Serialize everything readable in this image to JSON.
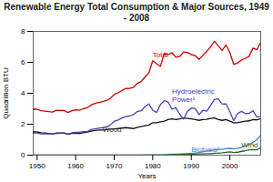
{
  "chart_data": {
    "type": "line",
    "title": "Renewable Energy Total Consumption & Major Sources, 1949 - 2008",
    "xlabel": "Years",
    "ylabel": "Quadrillion BTU",
    "xlim": [
      1949,
      2008
    ],
    "ylim": [
      0,
      8
    ],
    "xticks": [
      1950,
      1960,
      1970,
      1980,
      1990,
      2000
    ],
    "yticks": [
      0,
      2,
      4,
      6,
      8
    ],
    "grid": false,
    "x": [
      1949,
      1950,
      1951,
      1952,
      1953,
      1954,
      1955,
      1956,
      1957,
      1958,
      1959,
      1960,
      1961,
      1962,
      1963,
      1964,
      1965,
      1966,
      1967,
      1968,
      1969,
      1970,
      1971,
      1972,
      1973,
      1974,
      1975,
      1976,
      1977,
      1978,
      1979,
      1980,
      1981,
      1982,
      1983,
      1984,
      1985,
      1986,
      1987,
      1988,
      1989,
      1990,
      1991,
      1992,
      1993,
      1994,
      1995,
      1996,
      1997,
      1998,
      1999,
      2000,
      2001,
      2002,
      2003,
      2004,
      2005,
      2006,
      2007,
      2008
    ],
    "series": [
      {
        "name": "Total",
        "color": "#cc0000",
        "values": [
          2.97,
          2.97,
          2.87,
          2.85,
          2.82,
          2.79,
          2.9,
          2.89,
          2.89,
          2.76,
          2.88,
          2.93,
          2.91,
          3.0,
          3.06,
          3.24,
          3.35,
          3.4,
          3.47,
          3.53,
          3.67,
          3.93,
          4.03,
          4.18,
          4.31,
          4.32,
          4.38,
          4.64,
          4.76,
          5.06,
          5.32,
          6.1,
          5.91,
          5.74,
          6.6,
          6.5,
          6.62,
          6.33,
          6.38,
          6.67,
          6.64,
          6.5,
          6.44,
          6.19,
          6.45,
          6.71,
          7.0,
          7.36,
          7.07,
          6.77,
          7.12,
          6.63,
          5.87,
          5.95,
          6.15,
          6.25,
          6.39,
          6.92,
          6.82,
          7.28
        ]
      },
      {
        "name": "Wood",
        "color": "#111111",
        "values": [
          1.5,
          1.5,
          1.45,
          1.43,
          1.4,
          1.38,
          1.4,
          1.42,
          1.43,
          1.35,
          1.4,
          1.42,
          1.4,
          1.45,
          1.5,
          1.55,
          1.6,
          1.62,
          1.63,
          1.65,
          1.68,
          1.7,
          1.72,
          1.75,
          1.78,
          1.75,
          1.72,
          1.8,
          1.85,
          1.9,
          1.95,
          2.1,
          2.1,
          2.15,
          2.2,
          2.3,
          2.35,
          2.3,
          2.35,
          2.4,
          2.38,
          2.35,
          2.3,
          2.25,
          2.3,
          2.32,
          2.38,
          2.4,
          2.3,
          2.25,
          2.3,
          2.2,
          2.1,
          2.1,
          2.15,
          2.2,
          2.22,
          2.3,
          2.28,
          2.35
        ]
      },
      {
        "name": "Hydroelectric\nPower¹",
        "color": "#4444bb",
        "values": [
          1.43,
          1.43,
          1.38,
          1.38,
          1.38,
          1.38,
          1.44,
          1.43,
          1.43,
          1.38,
          1.44,
          1.47,
          1.48,
          1.52,
          1.52,
          1.65,
          1.7,
          1.74,
          1.78,
          1.83,
          1.95,
          2.19,
          2.27,
          2.4,
          2.49,
          2.53,
          2.62,
          2.82,
          2.87,
          3.14,
          3.31,
          2.9,
          2.76,
          3.27,
          3.53,
          3.43,
          2.97,
          3.07,
          2.63,
          2.34,
          2.83,
          3.05,
          3.01,
          2.62,
          2.9,
          2.84,
          3.21,
          3.59,
          3.64,
          3.3,
          3.32,
          2.81,
          2.24,
          2.69,
          2.83,
          2.69,
          2.7,
          2.87,
          2.46,
          2.5
        ]
      },
      {
        "name": "Biofuels²",
        "color": "#4488cc",
        "values": [
          0.0,
          0.0,
          0.0,
          0.0,
          0.0,
          0.0,
          0.0,
          0.0,
          0.0,
          0.0,
          0.0,
          0.0,
          0.0,
          0.0,
          0.0,
          0.0,
          0.0,
          0.0,
          0.0,
          0.0,
          0.0,
          0.0,
          0.0,
          0.0,
          0.01,
          0.01,
          0.01,
          0.01,
          0.01,
          0.02,
          0.02,
          0.02,
          0.02,
          0.02,
          0.04,
          0.05,
          0.07,
          0.07,
          0.08,
          0.09,
          0.1,
          0.12,
          0.14,
          0.17,
          0.22,
          0.27,
          0.3,
          0.33,
          0.37,
          0.38,
          0.42,
          0.44,
          0.41,
          0.45,
          0.5,
          0.6,
          0.7,
          0.82,
          1.0,
          1.28
        ]
      },
      {
        "name": "Wind",
        "color": "#226622",
        "values": [
          0.0,
          0.0,
          0.0,
          0.0,
          0.0,
          0.0,
          0.0,
          0.0,
          0.0,
          0.0,
          0.0,
          0.0,
          0.0,
          0.0,
          0.0,
          0.0,
          0.0,
          0.0,
          0.0,
          0.0,
          0.0,
          0.0,
          0.0,
          0.0,
          0.0,
          0.0,
          0.0,
          0.0,
          0.0,
          0.0,
          0.0,
          0.0,
          0.0,
          0.01,
          0.01,
          0.02,
          0.03,
          0.03,
          0.04,
          0.05,
          0.06,
          0.06,
          0.07,
          0.08,
          0.08,
          0.09,
          0.1,
          0.12,
          0.13,
          0.15,
          0.18,
          0.21,
          0.17,
          0.19,
          0.25,
          0.28,
          0.34,
          0.36,
          0.34,
          0.51
        ]
      }
    ],
    "annotations": [
      {
        "text": "Total",
        "x": 1980,
        "y": 6.35,
        "color": "#cc0000"
      },
      {
        "text": "Wood",
        "x": 1967,
        "y": 1.48,
        "color": "#333333"
      },
      {
        "text": "Hydroelectric\nPower¹",
        "x": 1985,
        "y": 3.45,
        "color": "#4444bb"
      },
      {
        "text": "Biofuels²",
        "x": 1990,
        "y": 0.22,
        "color": "#4488cc"
      },
      {
        "text": "Wind",
        "x": 2003,
        "y": 0.52,
        "color": "#226622"
      }
    ]
  }
}
